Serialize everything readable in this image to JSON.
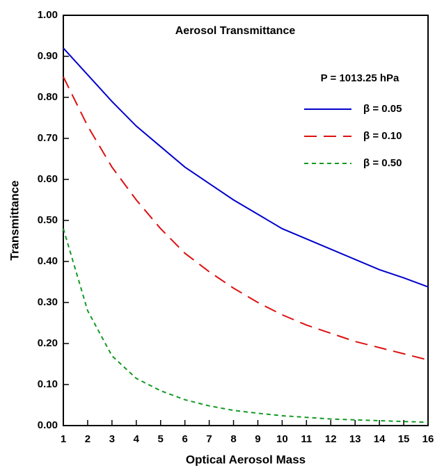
{
  "chart_data": {
    "type": "line",
    "title": "Aerosol Transmittance",
    "annotation": "P = 1013.25 hPa",
    "x_label": "Optical Aerosol Mass",
    "y_label": "Transmittance",
    "x": [
      1,
      2,
      3,
      4,
      5,
      6,
      7,
      8,
      9,
      10,
      11,
      12,
      13,
      14,
      15,
      16
    ],
    "series": [
      {
        "name": "β = 0.05",
        "color": "#0000cc",
        "linestyle": "solid",
        "values": [
          0.92,
          0.855,
          0.79,
          0.73,
          0.68,
          0.63,
          0.59,
          0.55,
          0.515,
          0.48,
          0.455,
          0.43,
          0.405,
          0.38,
          0.36,
          0.338
        ]
      },
      {
        "name": "β = 0.10",
        "color": "#dd1111",
        "linestyle": "dashed",
        "values": [
          0.85,
          0.73,
          0.63,
          0.55,
          0.48,
          0.42,
          0.375,
          0.335,
          0.3,
          0.27,
          0.245,
          0.225,
          0.205,
          0.19,
          0.175,
          0.16
        ]
      },
      {
        "name": "β = 0.50",
        "color": "#119922",
        "linestyle": "dotted",
        "values": [
          0.48,
          0.28,
          0.17,
          0.115,
          0.085,
          0.063,
          0.048,
          0.037,
          0.03,
          0.024,
          0.02,
          0.016,
          0.014,
          0.012,
          0.01,
          0.008
        ]
      }
    ],
    "xlim": [
      1,
      16
    ],
    "xticks": [
      1,
      2,
      3,
      4,
      5,
      6,
      7,
      8,
      9,
      10,
      11,
      12,
      13,
      14,
      15,
      16
    ],
    "ylim": [
      0,
      1
    ],
    "yticks": [
      {
        "value": 0,
        "label": "0.00"
      },
      {
        "value": 0.1,
        "label": "0.10"
      },
      {
        "value": 0.2,
        "label": "0.20"
      },
      {
        "value": 0.3,
        "label": "0.30"
      },
      {
        "value": 0.4,
        "label": "0.40"
      },
      {
        "value": 0.5,
        "label": "0.50"
      },
      {
        "value": 0.6,
        "label": "0.60"
      },
      {
        "value": 0.7,
        "label": "0.70"
      },
      {
        "value": 0.8,
        "label": "0.80"
      },
      {
        "value": 0.9,
        "label": "0.90"
      },
      {
        "value": 1,
        "label": "1.00"
      }
    ],
    "grid": false,
    "legend": "upper right"
  }
}
